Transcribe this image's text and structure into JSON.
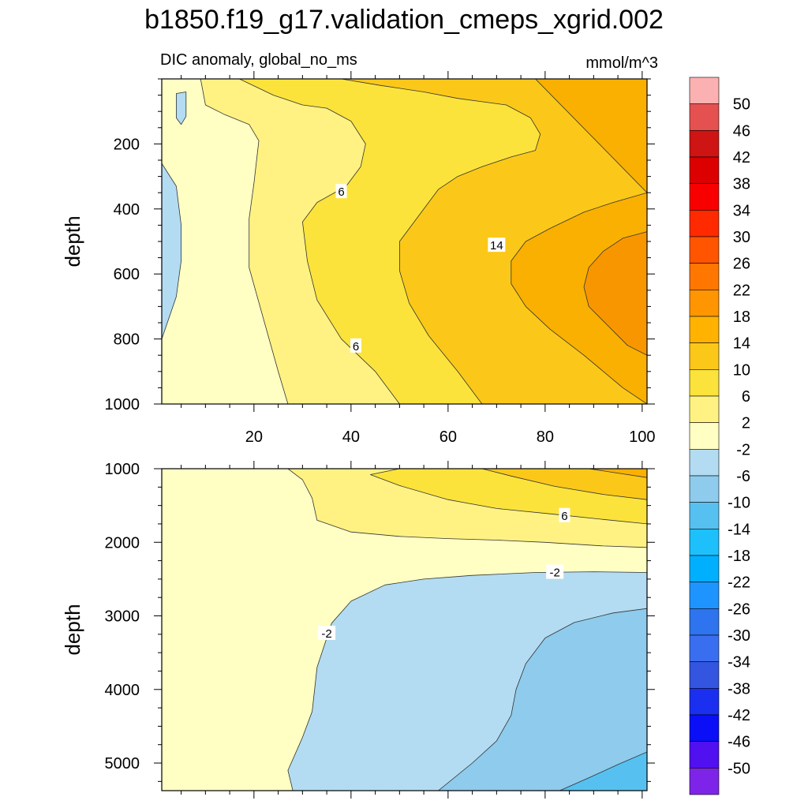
{
  "title": "b1850.f19_g17.validation_cmeps_xgrid.002",
  "colors": {
    "frame": "#000000",
    "contour_line": "#333333"
  },
  "chart_data": [
    {
      "type": "contour",
      "panel": "upper",
      "subtitle_left": "DIC anomaly, global_no_ms",
      "subtitle_right": "mmol/m^3",
      "xlabel": "",
      "ylabel": "depth",
      "xlim": [
        1,
        101
      ],
      "ylim": [
        0,
        1000
      ],
      "y_inverted": true,
      "x_ticks": [
        20,
        40,
        60,
        80,
        100
      ],
      "y_ticks": [
        200,
        400,
        600,
        800,
        1000
      ],
      "x_ticklabels": [
        "20",
        "40",
        "60",
        "80",
        "100"
      ],
      "y_ticklabels": [
        "200",
        "400",
        "600",
        "800",
        "1000"
      ],
      "contour_labels": [
        {
          "text": "6",
          "x": 38,
          "y": 345
        },
        {
          "text": "14",
          "x": 70,
          "y": 510
        },
        {
          "text": "6",
          "x": 41,
          "y": 820
        }
      ],
      "regions": [
        {
          "level": "-6 to -2",
          "color": "#b3dcf2",
          "outline": [
            [
              1,
              260
            ],
            [
              4,
              330
            ],
            [
              5,
              450
            ],
            [
              5,
              560
            ],
            [
              4,
              670
            ],
            [
              1,
              800
            ]
          ]
        },
        {
          "level": "-6 to -2",
          "color": "#b3dcf2",
          "outline": [
            [
              4,
              45
            ],
            [
              6,
              40
            ],
            [
              6,
              115
            ],
            [
              5,
              140
            ],
            [
              4,
              120
            ]
          ]
        },
        {
          "level": "2 to 6",
          "color": "#fff283",
          "outline": [
            [
              9,
              0
            ],
            [
              101,
              0
            ],
            [
              101,
              1000
            ],
            [
              27,
              1000
            ],
            [
              25,
              900
            ],
            [
              22,
              740
            ],
            [
              19,
              580
            ],
            [
              19,
              430
            ],
            [
              20,
              320
            ],
            [
              21,
              190
            ],
            [
              19,
              140
            ],
            [
              14,
              110
            ],
            [
              10,
              80
            ]
          ]
        },
        {
          "level": "6 to 10",
          "color": "#fbe33b",
          "outline": [
            [
              17,
              0
            ],
            [
              101,
              0
            ],
            [
              101,
              1000
            ],
            [
              50,
              1000
            ],
            [
              45,
              900
            ],
            [
              38,
              800
            ],
            [
              33,
              680
            ],
            [
              31,
              560
            ],
            [
              30,
              440
            ],
            [
              33,
              380
            ],
            [
              39,
              330
            ],
            [
              42,
              270
            ],
            [
              43,
              200
            ],
            [
              40,
              130
            ],
            [
              35,
              90
            ],
            [
              30,
              80
            ],
            [
              24,
              50
            ]
          ]
        },
        {
          "level": "10 to 14",
          "color": "#fbc819",
          "outline": [
            [
              38,
              0
            ],
            [
              101,
              0
            ],
            [
              101,
              1000
            ],
            [
              67,
              1000
            ],
            [
              62,
              900
            ],
            [
              56,
              790
            ],
            [
              52,
              690
            ],
            [
              50,
              590
            ],
            [
              50,
              500
            ],
            [
              54,
              420
            ],
            [
              58,
              340
            ],
            [
              62,
              300
            ],
            [
              67,
              270
            ],
            [
              73,
              240
            ],
            [
              78,
              220
            ],
            [
              79,
              170
            ],
            [
              77,
              120
            ],
            [
              72,
              80
            ],
            [
              62,
              60
            ],
            [
              55,
              40
            ],
            [
              46,
              20
            ]
          ]
        },
        {
          "level": "14 to 18",
          "color": "#f9b000",
          "outline": [
            [
              78,
              0
            ],
            [
              101,
              0
            ],
            [
              101,
              1000
            ],
            [
              96,
              950
            ],
            [
              88,
              850
            ],
            [
              81,
              770
            ],
            [
              76,
              700
            ],
            [
              73,
              630
            ],
            [
              73,
              560
            ],
            [
              76,
              500
            ],
            [
              81,
              460
            ],
            [
              88,
              410
            ],
            [
              94,
              380
            ],
            [
              101,
              350
            ]
          ]
        },
        {
          "level": "18 to 22",
          "color": "#f89600",
          "outline": [
            [
              101,
              470
            ],
            [
              96,
              490
            ],
            [
              92,
              530
            ],
            [
              89,
              580
            ],
            [
              88,
              640
            ],
            [
              89,
              700
            ],
            [
              93,
              760
            ],
            [
              97,
              820
            ],
            [
              101,
              850
            ]
          ]
        }
      ]
    },
    {
      "type": "contour",
      "panel": "lower",
      "subtitle_left": "",
      "subtitle_right": "",
      "xlabel": "",
      "ylabel": "depth",
      "xlim": [
        1,
        101
      ],
      "ylim": [
        1000,
        5375
      ],
      "y_inverted": true,
      "x_ticks": [
        20,
        40,
        60,
        80,
        100
      ],
      "y_ticks": [
        1000,
        2000,
        3000,
        4000,
        5000
      ],
      "x_ticklabels": [],
      "y_ticklabels": [
        "1000",
        "2000",
        "3000",
        "4000",
        "5000"
      ],
      "contour_labels": [
        {
          "text": "6",
          "x": 84,
          "y": 1630
        },
        {
          "text": "-2",
          "x": 82,
          "y": 2400
        },
        {
          "text": "-2",
          "x": 35,
          "y": 3230
        }
      ],
      "regions": [
        {
          "level": "2 to 6",
          "color": "#fff283",
          "outline": [
            [
              27,
              1000
            ],
            [
              101,
              1000
            ],
            [
              101,
              2070
            ],
            [
              92,
              2050
            ],
            [
              80,
              2000
            ],
            [
              70,
              1970
            ],
            [
              60,
              1950
            ],
            [
              50,
              1920
            ],
            [
              40,
              1860
            ],
            [
              33,
              1700
            ],
            [
              32,
              1400
            ],
            [
              30,
              1150
            ]
          ]
        },
        {
          "level": "6 to 10",
          "color": "#fbe33b",
          "outline": [
            [
              50,
              1000
            ],
            [
              101,
              1000
            ],
            [
              101,
              1750
            ],
            [
              92,
              1690
            ],
            [
              82,
              1620
            ],
            [
              70,
              1540
            ],
            [
              60,
              1420
            ],
            [
              50,
              1230
            ],
            [
              44,
              1080
            ]
          ]
        },
        {
          "level": "10 to 14",
          "color": "#fbc819",
          "outline": [
            [
              67,
              1000
            ],
            [
              101,
              1000
            ],
            [
              101,
              1420
            ],
            [
              92,
              1350
            ],
            [
              82,
              1240
            ],
            [
              73,
              1100
            ]
          ]
        },
        {
          "level": "14 to 18",
          "color": "#f9b000",
          "outline": [
            [
              89,
              1000
            ],
            [
              101,
              1000
            ],
            [
              101,
              1120
            ],
            [
              95,
              1060
            ]
          ]
        },
        {
          "level": "-6 to -2",
          "color": "#b3dcf2",
          "outline": [
            [
              101,
              2410
            ],
            [
              90,
              2400
            ],
            [
              78,
              2410
            ],
            [
              65,
              2450
            ],
            [
              55,
              2500
            ],
            [
              47,
              2580
            ],
            [
              40,
              2800
            ],
            [
              36,
              3100
            ],
            [
              33,
              3700
            ],
            [
              32,
              4300
            ],
            [
              30,
              4650
            ],
            [
              27,
              5100
            ],
            [
              28,
              5375
            ],
            [
              101,
              5375
            ]
          ]
        },
        {
          "level": "-10 to -6",
          "color": "#8ecbec",
          "outline": [
            [
              101,
              2900
            ],
            [
              94,
              2960
            ],
            [
              86,
              3090
            ],
            [
              80,
              3300
            ],
            [
              76,
              3650
            ],
            [
              74,
              4000
            ],
            [
              73,
              4350
            ],
            [
              70,
              4700
            ],
            [
              65,
              5000
            ],
            [
              58,
              5375
            ],
            [
              101,
              5375
            ]
          ]
        },
        {
          "level": "-14 to -10",
          "color": "#56c1f0",
          "outline": [
            [
              101,
              4850
            ],
            [
              95,
              5020
            ],
            [
              89,
              5200
            ],
            [
              83,
              5375
            ],
            [
              101,
              5375
            ]
          ]
        }
      ]
    },
    {
      "type": "colorbar",
      "levels": [
        "50",
        "46",
        "42",
        "38",
        "34",
        "30",
        "26",
        "22",
        "18",
        "14",
        "10",
        "6",
        "2",
        "-2",
        "-6",
        "-10",
        "-14",
        "-18",
        "-22",
        "-26",
        "-30",
        "-34",
        "-38",
        "-42",
        "-46",
        "-50"
      ],
      "colors": [
        "#fbb1b1",
        "#e55050",
        "#cf1414",
        "#dc0000",
        "#f80000",
        "#ff2a00",
        "#ff5500",
        "#ff7700",
        "#ff9500",
        "#ffb300",
        "#fbc819",
        "#fbe33b",
        "#fff283",
        "#ffffc4",
        "#b3dcf2",
        "#8ecbec",
        "#56c1f0",
        "#1ec0fc",
        "#00b0ff",
        "#1e94ff",
        "#2d74ee",
        "#3a6ef0",
        "#3355e0",
        "#1a2ff0",
        "#0a0ff8",
        "#5010f0",
        "#7e24e8"
      ]
    }
  ]
}
